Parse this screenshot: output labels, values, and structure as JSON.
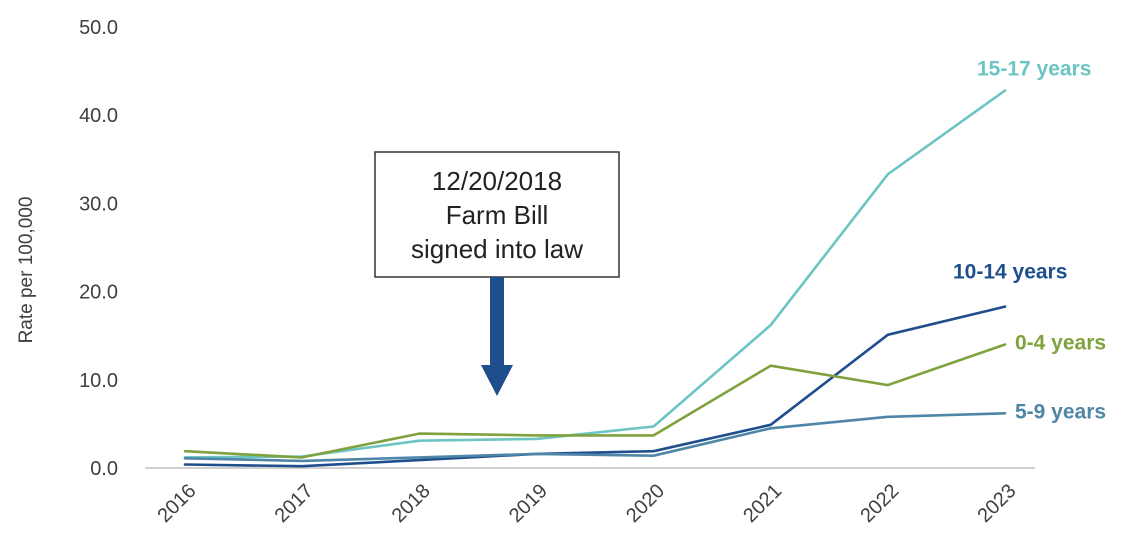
{
  "chart_data": {
    "type": "line",
    "x": [
      "2016",
      "2017",
      "2018",
      "2019",
      "2020",
      "2021",
      "2022",
      "2023"
    ],
    "ylabel": "Rate per 100,000",
    "ylim": [
      0,
      50
    ],
    "yticks": [
      "0.0",
      "10.0",
      "20.0",
      "30.0",
      "40.0",
      "50.0"
    ],
    "grid": false,
    "series": [
      {
        "name": "15-17 years",
        "color": "#6cc5c3",
        "values": [
          1.2,
          1.3,
          3.1,
          3.3,
          4.7,
          16.2,
          33.3,
          42.8
        ]
      },
      {
        "name": "10-14 years",
        "color": "#1f4e8c",
        "values": [
          0.4,
          0.2,
          0.9,
          1.6,
          1.9,
          4.9,
          15.1,
          18.3
        ]
      },
      {
        "name": "0-4 years",
        "color": "#7fa23e",
        "values": [
          1.9,
          1.2,
          3.9,
          3.7,
          3.7,
          11.6,
          9.4,
          14.0
        ]
      },
      {
        "name": "5-9 years",
        "color": "#4f86a8",
        "values": [
          1.1,
          0.8,
          1.2,
          1.6,
          1.4,
          4.5,
          5.8,
          6.2
        ]
      }
    ],
    "annotation": {
      "lines": [
        "12/20/2018",
        "Farm Bill",
        "signed into law"
      ],
      "arrow_color": "#1f4e8c"
    }
  }
}
